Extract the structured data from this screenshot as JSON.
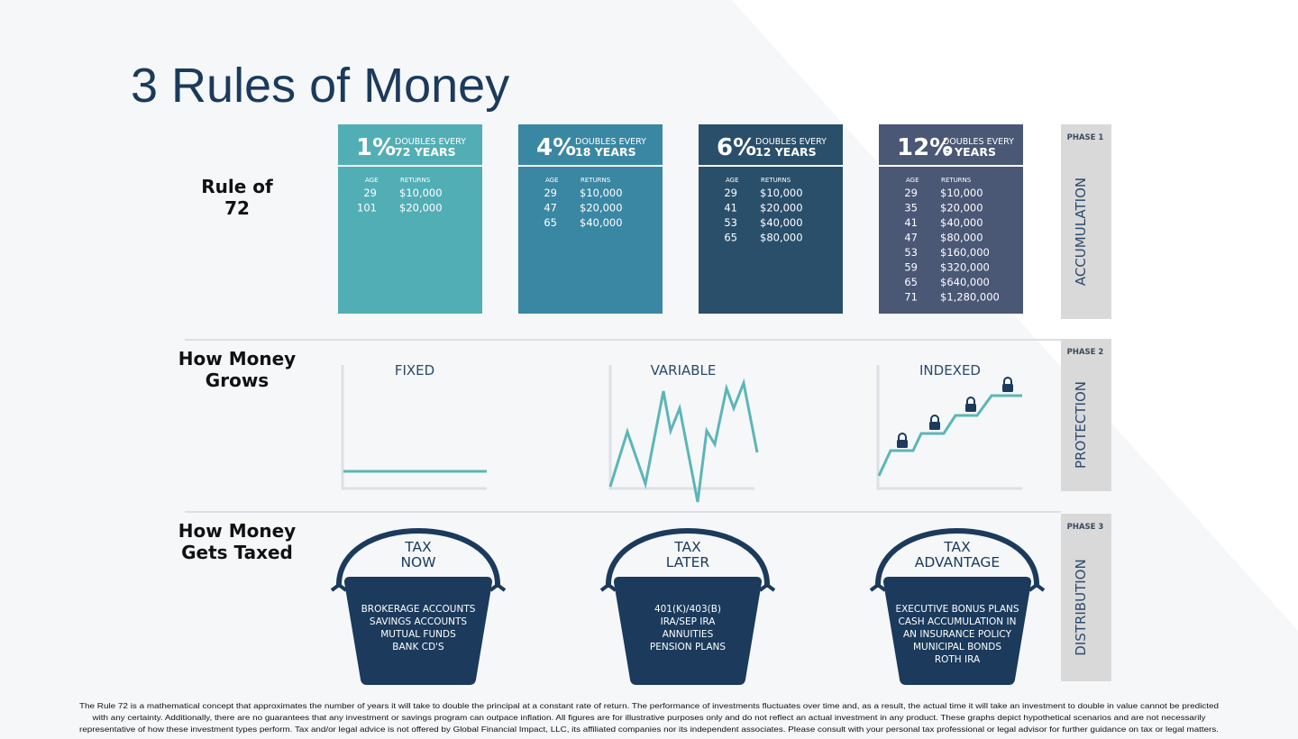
{
  "title": "3 Rules of Money",
  "row_labels": [
    [
      "Rule of",
      "72"
    ],
    [
      "How Money",
      "Grows"
    ],
    [
      "How Money",
      "Gets Taxed"
    ]
  ],
  "rule_of_72": {
    "cards": [
      {
        "rate": "1%",
        "caption": [
          "DOUBLES EVERY",
          "72 YEARS"
        ],
        "headers": [
          "AGE",
          "RETURNS"
        ],
        "rows": [
          [
            "29",
            "$10,000"
          ],
          [
            "101",
            "$20,000"
          ]
        ]
      },
      {
        "rate": "4%",
        "caption": [
          "DOUBLES EVERY",
          "18 YEARS"
        ],
        "headers": [
          "AGE",
          "RETURNS"
        ],
        "rows": [
          [
            "29",
            "$10,000"
          ],
          [
            "47",
            "$20,000"
          ],
          [
            "65",
            "$40,000"
          ]
        ]
      },
      {
        "rate": "6%",
        "caption": [
          "DOUBLES EVERY",
          "12 YEARS"
        ],
        "headers": [
          "AGE",
          "RETURNS"
        ],
        "rows": [
          [
            "29",
            "$10,000"
          ],
          [
            "41",
            "$20,000"
          ],
          [
            "53",
            "$40,000"
          ],
          [
            "65",
            "$80,000"
          ]
        ]
      },
      {
        "rate": "12%",
        "caption": [
          "DOUBLES EVERY",
          "6 YEARS"
        ],
        "headers": [
          "AGE",
          "RETURNS"
        ],
        "rows": [
          [
            "29",
            "$10,000"
          ],
          [
            "35",
            "$20,000"
          ],
          [
            "41",
            "$40,000"
          ],
          [
            "47",
            "$80,000"
          ],
          [
            "53",
            "$160,000"
          ],
          [
            "59",
            "$320,000"
          ],
          [
            "65",
            "$640,000"
          ],
          [
            "71",
            "$1,280,000"
          ]
        ]
      }
    ]
  },
  "phases": [
    {
      "phase": "PHASE 1",
      "name": "ACCUMULATION"
    },
    {
      "phase": "PHASE 2",
      "name": "PROTECTION"
    },
    {
      "phase": "PHASE 3",
      "name": "DISTRIBUTION"
    }
  ],
  "growth": [
    {
      "label": "FIXED"
    },
    {
      "label": "VARIABLE"
    },
    {
      "label": "INDEXED"
    }
  ],
  "taxes": [
    {
      "title": [
        "TAX",
        "NOW"
      ],
      "items": [
        "BROKERAGE ACCOUNTS",
        "SAVINGS ACCOUNTS",
        "MUTUAL FUNDS",
        "BANK CD'S"
      ]
    },
    {
      "title": [
        "TAX",
        "LATER"
      ],
      "items": [
        "401(K)/403(B)",
        "IRA/SEP IRA",
        "ANNUITIES",
        "PENSION PLANS"
      ]
    },
    {
      "title": [
        "TAX",
        "ADVANTAGE"
      ],
      "items": [
        "EXECUTIVE BONUS PLANS",
        "CASH ACCUMULATION IN",
        "AN INSURANCE POLICY",
        "MUNICIPAL BONDS",
        "ROTH IRA"
      ]
    }
  ],
  "disclaimer": [
    "The Rule 72 is a mathematical concept that approximates the number of years it will take to double the principal at a constant rate of return. The performance of investments fluctuates over time and, as a result, the actual time it will take an investment to double in value cannot be predicted",
    "with any certainty. Additionally, there are no guarantees that any investment or savings program can outpace inflation. All figures are for illustrative purposes only and do not reflect an actual investment in any product. These graphs depict hypothetical scenarios and are not necessarily",
    "representative of how these investment types perform. Tax and/or legal advice is not offered by Global Financial Impact, LLC, its affiliated companies nor its independent associates. Please consult with your personal tax professional or legal advisor for further guidance on tax or legal matters."
  ]
}
